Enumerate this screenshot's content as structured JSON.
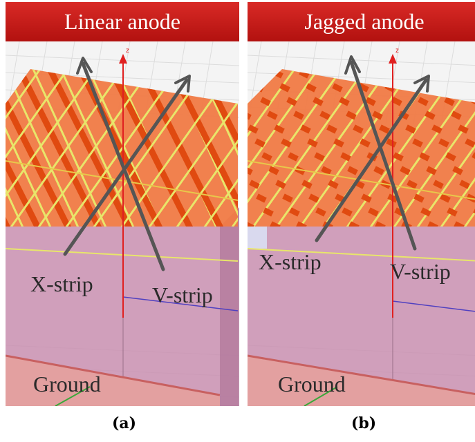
{
  "panels": [
    {
      "title": "Linear anode",
      "caption": "(a)",
      "x_label": "X-strip",
      "v_label": "V-strip",
      "ground_label": "Ground",
      "axis_label": "z"
    },
    {
      "title": "Jagged anode",
      "caption": "(b)",
      "x_label": "X-strip",
      "v_label": "V-strip",
      "ground_label": "Ground",
      "axis_label": "z"
    }
  ],
  "colors": {
    "banner": "#c61b18",
    "anode": "#f07a44",
    "strip_dark": "#e04a10",
    "strip_yellow": "#e8e66a",
    "body_magenta": "#c98fb0",
    "ground": "#e3a0a0",
    "axis_red": "#e02020",
    "arrow_gray": "#555555"
  },
  "icons": {
    "z_axis": "z-axis-arrow-icon",
    "strip_direction": "strip-direction-arrow-icon"
  }
}
